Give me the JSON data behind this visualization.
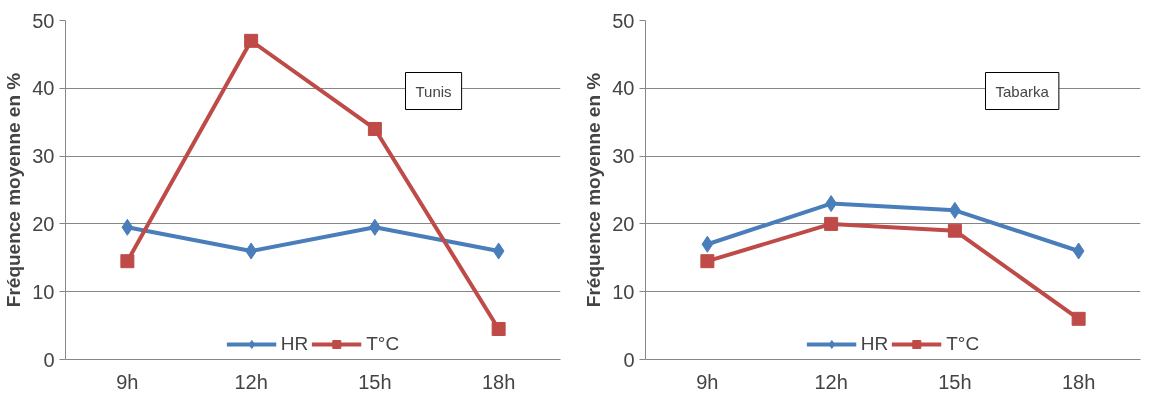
{
  "chart_data": [
    {
      "type": "line",
      "categories": [
        "9h",
        "12h",
        "15h",
        "18h"
      ],
      "ylabel": "Fréquence moyenne en %",
      "ylim": [
        0,
        50
      ],
      "yticks": [
        0,
        10,
        20,
        30,
        40,
        50
      ],
      "grid": "y",
      "legend": "bottom",
      "annotations": [
        "Tunis"
      ],
      "line_style": "solid",
      "series": [
        {
          "name": "HR",
          "color": "#4a7ebb",
          "marker": "diamond",
          "values": [
            19.5,
            16,
            19.5,
            16
          ]
        },
        {
          "name": "T°C",
          "color": "#be4b48",
          "marker": "square",
          "values": [
            14.5,
            47,
            34,
            4.5
          ]
        }
      ]
    },
    {
      "type": "line",
      "categories": [
        "9h",
        "12h",
        "15h",
        "18h"
      ],
      "ylabel": "Fréquence moyenne en %",
      "ylim": [
        0,
        50
      ],
      "yticks": [
        0,
        10,
        20,
        30,
        40,
        50
      ],
      "grid": "y",
      "legend": "bottom",
      "annotations": [
        "Tabarka"
      ],
      "line_style": "solid",
      "series": [
        {
          "name": "HR",
          "color": "#4a7ebb",
          "marker": "diamond",
          "values": [
            17,
            23,
            22,
            16
          ]
        },
        {
          "name": "T°C",
          "color": "#be4b48",
          "marker": "square",
          "values": [
            14.5,
            20,
            19,
            6
          ]
        }
      ]
    }
  ]
}
